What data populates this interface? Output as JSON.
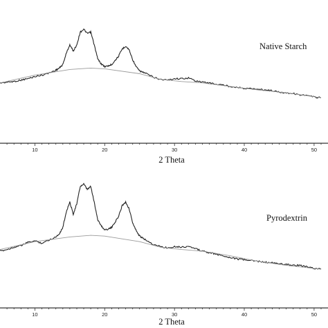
{
  "chart_data": [
    {
      "type": "line",
      "series_label": "Native Starch",
      "xlabel": "2 Theta",
      "ylabel": "",
      "xlim": [
        5,
        51
      ],
      "xticks": [
        10,
        20,
        30,
        40,
        50
      ],
      "grid": false,
      "y_scale": "arbitrary intensity 0-100",
      "series": [
        {
          "name": "Native Starch",
          "x": [
            5,
            6,
            7,
            8,
            9,
            10,
            11,
            12,
            13,
            13.5,
            14,
            14.5,
            15,
            15.5,
            16,
            16.5,
            17,
            17.5,
            18,
            18.5,
            19,
            19.5,
            20,
            20.5,
            21,
            21.5,
            22,
            22.5,
            23,
            23.5,
            24,
            24.5,
            25,
            25.5,
            26,
            27,
            28,
            29,
            30,
            31,
            32,
            33,
            34,
            35,
            36,
            37,
            38,
            39,
            40,
            41,
            42,
            43,
            44,
            45,
            46,
            47,
            48,
            49,
            50,
            51
          ],
          "y": [
            10,
            11,
            12,
            14,
            16,
            19,
            21,
            24,
            28,
            31,
            36,
            52,
            64,
            55,
            64,
            82,
            86,
            80,
            82,
            64,
            44,
            37,
            33,
            34,
            36,
            42,
            48,
            58,
            62,
            57,
            43,
            33,
            27,
            25,
            23,
            18,
            15,
            14,
            16,
            16,
            17,
            13,
            11,
            10,
            8,
            7,
            5,
            4,
            2,
            2,
            1,
            0,
            -1,
            -3,
            -4,
            -5,
            -7,
            -8,
            -10,
            -11
          ]
        },
        {
          "name": "",
          "x": [
            5,
            10,
            15,
            18,
            20,
            25,
            28,
            31,
            34,
            38,
            42,
            46,
            51
          ],
          "y": [
            10,
            21,
            29,
            31,
            30,
            23,
            15,
            12,
            10,
            5,
            0,
            -4,
            -11
          ]
        }
      ]
    },
    {
      "type": "line",
      "series_label": "Pyrodextrin",
      "xlabel": "2 Theta",
      "ylabel": "",
      "xlim": [
        5,
        51
      ],
      "xticks": [
        10,
        20,
        30,
        40,
        50
      ],
      "grid": false,
      "y_scale": "arbitrary intensity 0-100",
      "series": [
        {
          "name": "Pyrodextrin",
          "x": [
            5,
            6,
            7,
            8,
            9,
            10,
            11,
            12,
            13,
            13.5,
            14,
            14.5,
            15,
            15.5,
            16,
            16.5,
            17,
            17.5,
            18,
            18.5,
            19,
            19.5,
            20,
            20.5,
            21,
            21.5,
            22,
            22.5,
            23,
            23.5,
            24,
            24.5,
            25,
            25.5,
            26,
            27,
            28,
            29,
            30,
            31,
            32,
            33,
            34,
            35,
            36,
            37,
            38,
            39,
            40,
            41,
            42,
            43,
            44,
            45,
            46,
            47,
            48,
            49,
            50,
            51
          ],
          "y": [
            8,
            10,
            13,
            15,
            19,
            21,
            18,
            22,
            26,
            30,
            38,
            58,
            70,
            55,
            68,
            90,
            93,
            86,
            90,
            70,
            48,
            40,
            35,
            36,
            38,
            45,
            52,
            66,
            70,
            62,
            44,
            34,
            27,
            24,
            22,
            16,
            14,
            12,
            14,
            13,
            14,
            11,
            8,
            6,
            4,
            2,
            0,
            -2,
            -3,
            -4,
            -5,
            -6,
            -7,
            -8,
            -9,
            -10,
            -10,
            -12,
            -14,
            -15
          ]
        },
        {
          "name": "",
          "x": [
            5,
            10,
            15,
            18,
            20,
            25,
            28,
            31,
            34,
            38,
            42,
            46,
            51
          ],
          "y": [
            10,
            20,
            26,
            28,
            27,
            20,
            13,
            10,
            8,
            2,
            -5,
            -10,
            -15
          ]
        }
      ]
    }
  ]
}
